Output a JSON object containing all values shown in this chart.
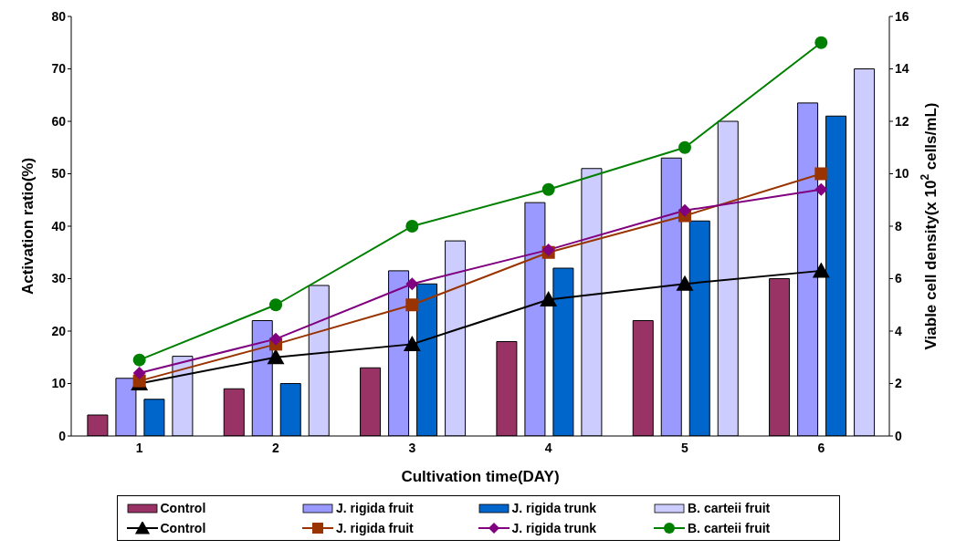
{
  "chart_data": {
    "type": "bar",
    "xlabel": "Cultivation time(DAY)",
    "ylabel": "Activation ratio(%)",
    "y2label": "Viable cell density(x 10$^{2}$ cells/mL)",
    "categories": [
      "1",
      "2",
      "3",
      "4",
      "5",
      "6"
    ],
    "ylim": [
      0,
      80
    ],
    "yticks": [
      0,
      10,
      20,
      30,
      40,
      50,
      60,
      70,
      80
    ],
    "y2lim": [
      0,
      16
    ],
    "y2ticks": [
      0,
      2,
      4,
      6,
      8,
      10,
      12,
      14,
      16
    ],
    "grid": false,
    "legend": "bottom",
    "series": [
      {
        "name": "Control",
        "color": "#993366",
        "values": [
          4,
          9,
          13,
          18,
          22,
          30
        ]
      },
      {
        "name": "J. rigida fruit",
        "color": "#9999ff",
        "values": [
          11,
          22,
          31.5,
          44.5,
          53,
          63.5
        ]
      },
      {
        "name": "J. rigida trunk",
        "color": "#0066cc",
        "values": [
          7,
          10,
          29,
          32,
          41,
          61
        ]
      },
      {
        "name": "B. carteii fruit",
        "color": "#ccccff",
        "values": [
          15.2,
          28.7,
          37.2,
          51,
          60,
          70
        ]
      },
      {
        "name": "Control",
        "type": "line",
        "axis": "y2",
        "marker": "triangle",
        "color": "#000000",
        "values": [
          2.0,
          3.0,
          3.5,
          5.2,
          5.8,
          6.3
        ]
      },
      {
        "name": "J. rigida fruit",
        "type": "line",
        "axis": "y2",
        "marker": "square",
        "color": "#993300",
        "values": [
          2.1,
          3.5,
          5.0,
          7.0,
          8.4,
          10.0
        ]
      },
      {
        "name": "J. rigida trunk",
        "type": "line",
        "axis": "y2",
        "marker": "diamond",
        "color": "#800080",
        "values": [
          2.4,
          3.7,
          5.8,
          7.1,
          8.6,
          9.4
        ]
      },
      {
        "name": "B. carteii fruit",
        "type": "line",
        "axis": "y2",
        "marker": "circle",
        "color": "#008000",
        "values": [
          2.9,
          5.0,
          8.0,
          9.4,
          11.0,
          15.0
        ]
      }
    ]
  }
}
